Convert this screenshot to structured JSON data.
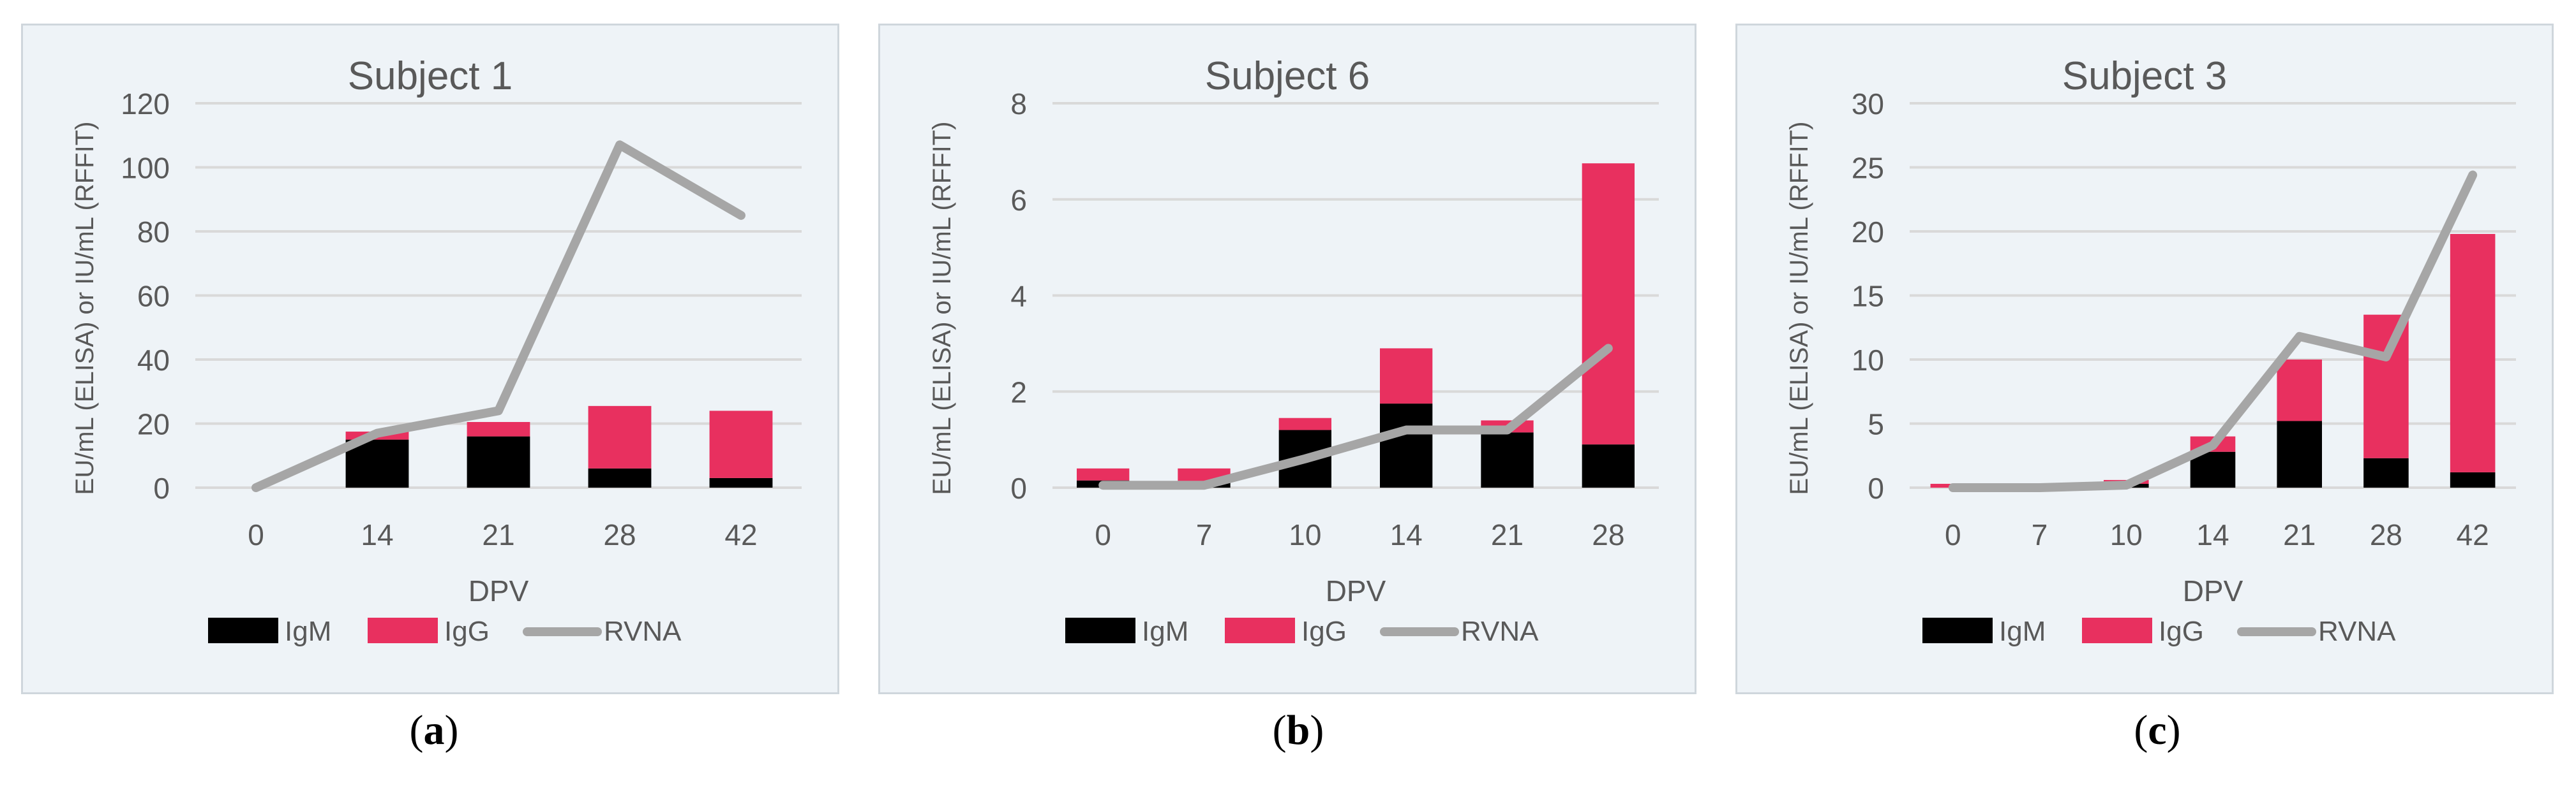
{
  "figure": {
    "captions": [
      "a",
      "b",
      "c"
    ],
    "colors": {
      "igm": "#000000",
      "igg": "#e8305f",
      "rvna": "#a6a6a6",
      "grid": "#d9d9d9",
      "text": "#595959"
    }
  },
  "chart_data": [
    {
      "type": "bar",
      "stacked": true,
      "title": "Subject 1",
      "xlabel": "DPV",
      "ylabel": "EU/mL (ELISA) or IU/mL (RFFIT)",
      "ylim": [
        0,
        120
      ],
      "yticks": [
        0,
        20,
        40,
        60,
        80,
        100,
        120
      ],
      "categories": [
        "0",
        "14",
        "21",
        "28",
        "42"
      ],
      "legend": [
        "IgM",
        "IgG",
        "RVNA"
      ],
      "series": [
        {
          "name": "IgM",
          "kind": "bar",
          "values": [
            0,
            15,
            16,
            6,
            3
          ]
        },
        {
          "name": "IgG",
          "kind": "bar",
          "values": [
            0,
            2.5,
            4.5,
            19.5,
            21
          ]
        },
        {
          "name": "RVNA",
          "kind": "line",
          "values": [
            0,
            17,
            24,
            107,
            85
          ]
        }
      ]
    },
    {
      "type": "bar",
      "stacked": true,
      "title": "Subject 6",
      "xlabel": "DPV",
      "ylabel": "EU/mL (ELISA) or IU/mL (RFFIT)",
      "ylim": [
        0,
        8
      ],
      "yticks": [
        0,
        2,
        4,
        6,
        8
      ],
      "categories": [
        "0",
        "7",
        "10",
        "14",
        "21",
        "28"
      ],
      "legend": [
        "IgM",
        "IgG",
        "RVNA"
      ],
      "series": [
        {
          "name": "IgM",
          "kind": "bar",
          "values": [
            0.15,
            0.1,
            1.2,
            1.75,
            1.15,
            0.9
          ]
        },
        {
          "name": "IgG",
          "kind": "bar",
          "values": [
            0.25,
            0.3,
            0.25,
            1.15,
            0.25,
            5.85
          ]
        },
        {
          "name": "RVNA",
          "kind": "line",
          "values": [
            0.05,
            0.05,
            0.6,
            1.2,
            1.2,
            2.9
          ]
        }
      ]
    },
    {
      "type": "bar",
      "stacked": true,
      "title": "Subject 3",
      "xlabel": "DPV",
      "ylabel": "EU/mL (ELISA) or IU/mL (RFFIT)",
      "ylim": [
        0,
        30
      ],
      "yticks": [
        0,
        5,
        10,
        15,
        20,
        25,
        30
      ],
      "categories": [
        "0",
        "7",
        "10",
        "14",
        "21",
        "28",
        "42"
      ],
      "legend": [
        "IgM",
        "IgG",
        "RVNA"
      ],
      "series": [
        {
          "name": "IgM",
          "kind": "bar",
          "values": [
            0,
            0,
            0.3,
            2.8,
            5.2,
            2.3,
            1.2
          ]
        },
        {
          "name": "IgG",
          "kind": "bar",
          "values": [
            0.3,
            0,
            0.3,
            1.2,
            4.8,
            11.2,
            18.6
          ]
        },
        {
          "name": "RVNA",
          "kind": "line",
          "values": [
            0,
            0,
            0.2,
            3.3,
            11.8,
            10.2,
            24.4
          ]
        }
      ]
    }
  ]
}
